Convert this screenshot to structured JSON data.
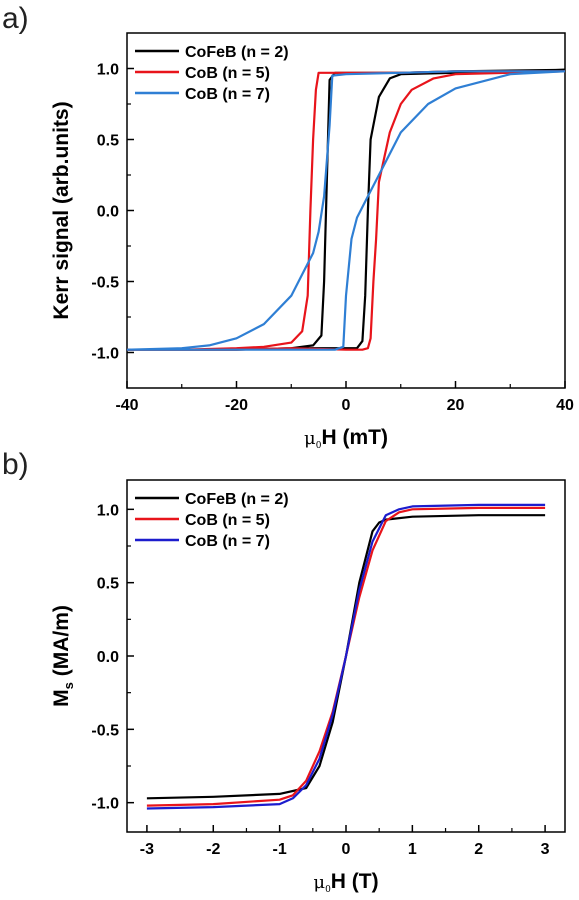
{
  "chart_data": [
    {
      "panel": "a)",
      "type": "line",
      "xlabel": "μ₀H (mT)",
      "ylabel": "Kerr signal (arb.units)",
      "xlim": [
        -40,
        40
      ],
      "ylim": [
        -1.25,
        1.25
      ],
      "xticks": [
        "-40",
        "-20",
        "0",
        "20",
        "40"
      ],
      "yticks": [
        "-1.0",
        "-0.5",
        "0.0",
        "0.5",
        "1.0"
      ],
      "legend_position": "top-left",
      "series": [
        {
          "name": "CoFeB (n = 2)",
          "color": "#000000",
          "x": [
            -40,
            -30,
            -20,
            -10,
            -6,
            -4.5,
            -4,
            -3.5,
            -3,
            -2,
            0,
            10,
            20,
            40,
            40,
            30,
            20,
            10,
            8,
            6,
            4.5,
            4,
            3.5,
            3,
            2,
            0,
            -10,
            -20,
            -40
          ],
          "y": [
            -0.98,
            -0.98,
            -0.98,
            -0.97,
            -0.95,
            -0.88,
            -0.5,
            0.2,
            0.92,
            0.97,
            0.97,
            0.97,
            0.98,
            0.99,
            0.99,
            0.98,
            0.97,
            0.96,
            0.93,
            0.8,
            0.5,
            0.0,
            -0.6,
            -0.92,
            -0.97,
            -0.97,
            -0.97,
            -0.98,
            -0.98
          ]
        },
        {
          "name": "CoB (n = 5)",
          "color": "#e8141b",
          "x": [
            -40,
            -30,
            -20,
            -15,
            -10,
            -8,
            -7,
            -6.5,
            -6,
            -5.5,
            -5,
            0,
            10,
            20,
            40,
            40,
            30,
            20,
            16,
            12,
            10,
            8,
            6,
            5.5,
            5,
            4.5,
            4,
            3,
            0,
            -10,
            -20,
            -40
          ],
          "y": [
            -0.98,
            -0.98,
            -0.97,
            -0.96,
            -0.93,
            -0.85,
            -0.6,
            0.0,
            0.5,
            0.85,
            0.97,
            0.97,
            0.97,
            0.98,
            0.98,
            0.98,
            0.97,
            0.96,
            0.93,
            0.85,
            0.75,
            0.55,
            0.2,
            -0.2,
            -0.5,
            -0.9,
            -0.97,
            -0.98,
            -0.98,
            -0.97,
            -0.98,
            -0.98
          ]
        },
        {
          "name": "CoB (n = 7)",
          "color": "#2f7fd4",
          "x": [
            -40,
            -30,
            -25,
            -20,
            -15,
            -10,
            -8,
            -6,
            -5,
            -4,
            -3,
            -2.5,
            0,
            10,
            20,
            40,
            40,
            30,
            20,
            15,
            10,
            6,
            4,
            2,
            1,
            0,
            -0.5,
            -2,
            -10,
            -20,
            -40
          ],
          "y": [
            -0.98,
            -0.97,
            -0.95,
            -0.9,
            -0.8,
            -0.6,
            -0.45,
            -0.3,
            -0.15,
            0.1,
            0.6,
            0.95,
            0.96,
            0.97,
            0.98,
            0.98,
            0.98,
            0.96,
            0.86,
            0.75,
            0.55,
            0.25,
            0.1,
            -0.05,
            -0.2,
            -0.6,
            -0.96,
            -0.98,
            -0.98,
            -0.98,
            -0.98
          ]
        }
      ]
    },
    {
      "panel": "b)",
      "type": "line",
      "xlabel": "μ₀H (T)",
      "ylabel": "Ms (MA/m)",
      "xlim": [
        -3.3,
        3.3
      ],
      "ylim": [
        -1.2,
        1.2
      ],
      "xticks": [
        "-3",
        "-2",
        "-1",
        "0",
        "1",
        "2",
        "3"
      ],
      "yticks": [
        "-1.0",
        "-0.5",
        "0.0",
        "0.5",
        "1.0"
      ],
      "legend_position": "top-left",
      "series": [
        {
          "name": "CoFeB (n = 2)",
          "color": "#000000",
          "x": [
            -3,
            -2,
            -1,
            -0.6,
            -0.4,
            -0.2,
            0,
            0.2,
            0.4,
            0.5,
            0.6,
            1,
            2,
            3
          ],
          "y": [
            -0.97,
            -0.96,
            -0.94,
            -0.9,
            -0.75,
            -0.45,
            0.0,
            0.5,
            0.85,
            0.91,
            0.93,
            0.95,
            0.96,
            0.96
          ]
        },
        {
          "name": "CoB (n = 5)",
          "color": "#e8141b",
          "x": [
            -3,
            -2,
            -1,
            -0.8,
            -0.6,
            -0.4,
            -0.2,
            0,
            0.2,
            0.4,
            0.6,
            0.8,
            1,
            2,
            3
          ],
          "y": [
            -1.02,
            -1.01,
            -0.98,
            -0.95,
            -0.85,
            -0.65,
            -0.38,
            0.0,
            0.4,
            0.72,
            0.92,
            0.98,
            1.0,
            1.01,
            1.01
          ]
        },
        {
          "name": "CoB (n = 7)",
          "color": "#1c1ccd",
          "x": [
            -3,
            -2,
            -1,
            -0.8,
            -0.6,
            -0.4,
            -0.2,
            0,
            0.2,
            0.4,
            0.6,
            0.8,
            1,
            2,
            3
          ],
          "y": [
            -1.04,
            -1.03,
            -1.01,
            -0.97,
            -0.88,
            -0.7,
            -0.4,
            0.0,
            0.45,
            0.78,
            0.96,
            1.0,
            1.02,
            1.03,
            1.03
          ]
        }
      ]
    }
  ]
}
